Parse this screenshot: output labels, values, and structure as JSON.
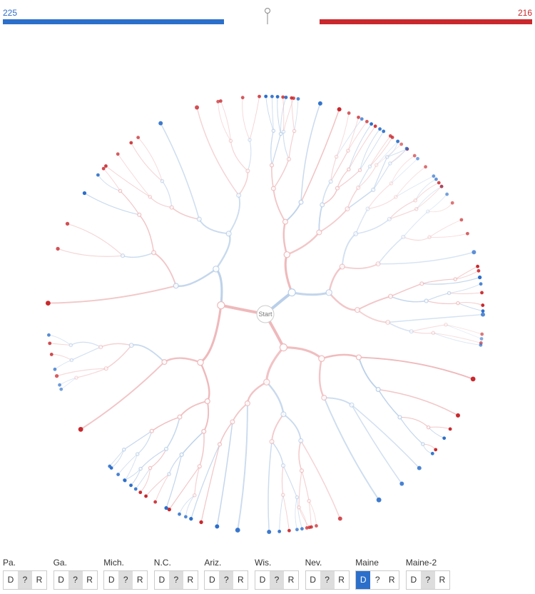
{
  "scores": {
    "dem": 225,
    "rep": 216
  },
  "center_label": "Start",
  "states": [
    {
      "name": "Pa.",
      "options": [
        "D",
        "?",
        "R"
      ],
      "selected": "?"
    },
    {
      "name": "Ga.",
      "options": [
        "D",
        "?",
        "R"
      ],
      "selected": "?"
    },
    {
      "name": "Mich.",
      "options": [
        "D",
        "?",
        "R"
      ],
      "selected": "?"
    },
    {
      "name": "N.C.",
      "options": [
        "D",
        "?",
        "R"
      ],
      "selected": "?"
    },
    {
      "name": "Ariz.",
      "options": [
        "D",
        "?",
        "R"
      ],
      "selected": "?"
    },
    {
      "name": "Wis.",
      "options": [
        "D",
        "?",
        "R"
      ],
      "selected": "?"
    },
    {
      "name": "Nev.",
      "options": [
        "D",
        "?",
        "R"
      ],
      "selected": "?"
    },
    {
      "name": "Maine",
      "options": [
        "D",
        "?",
        "R"
      ],
      "selected": "D"
    },
    {
      "name": "Maine-2",
      "options": [
        "D",
        "?",
        "R"
      ],
      "selected": "?"
    }
  ]
}
